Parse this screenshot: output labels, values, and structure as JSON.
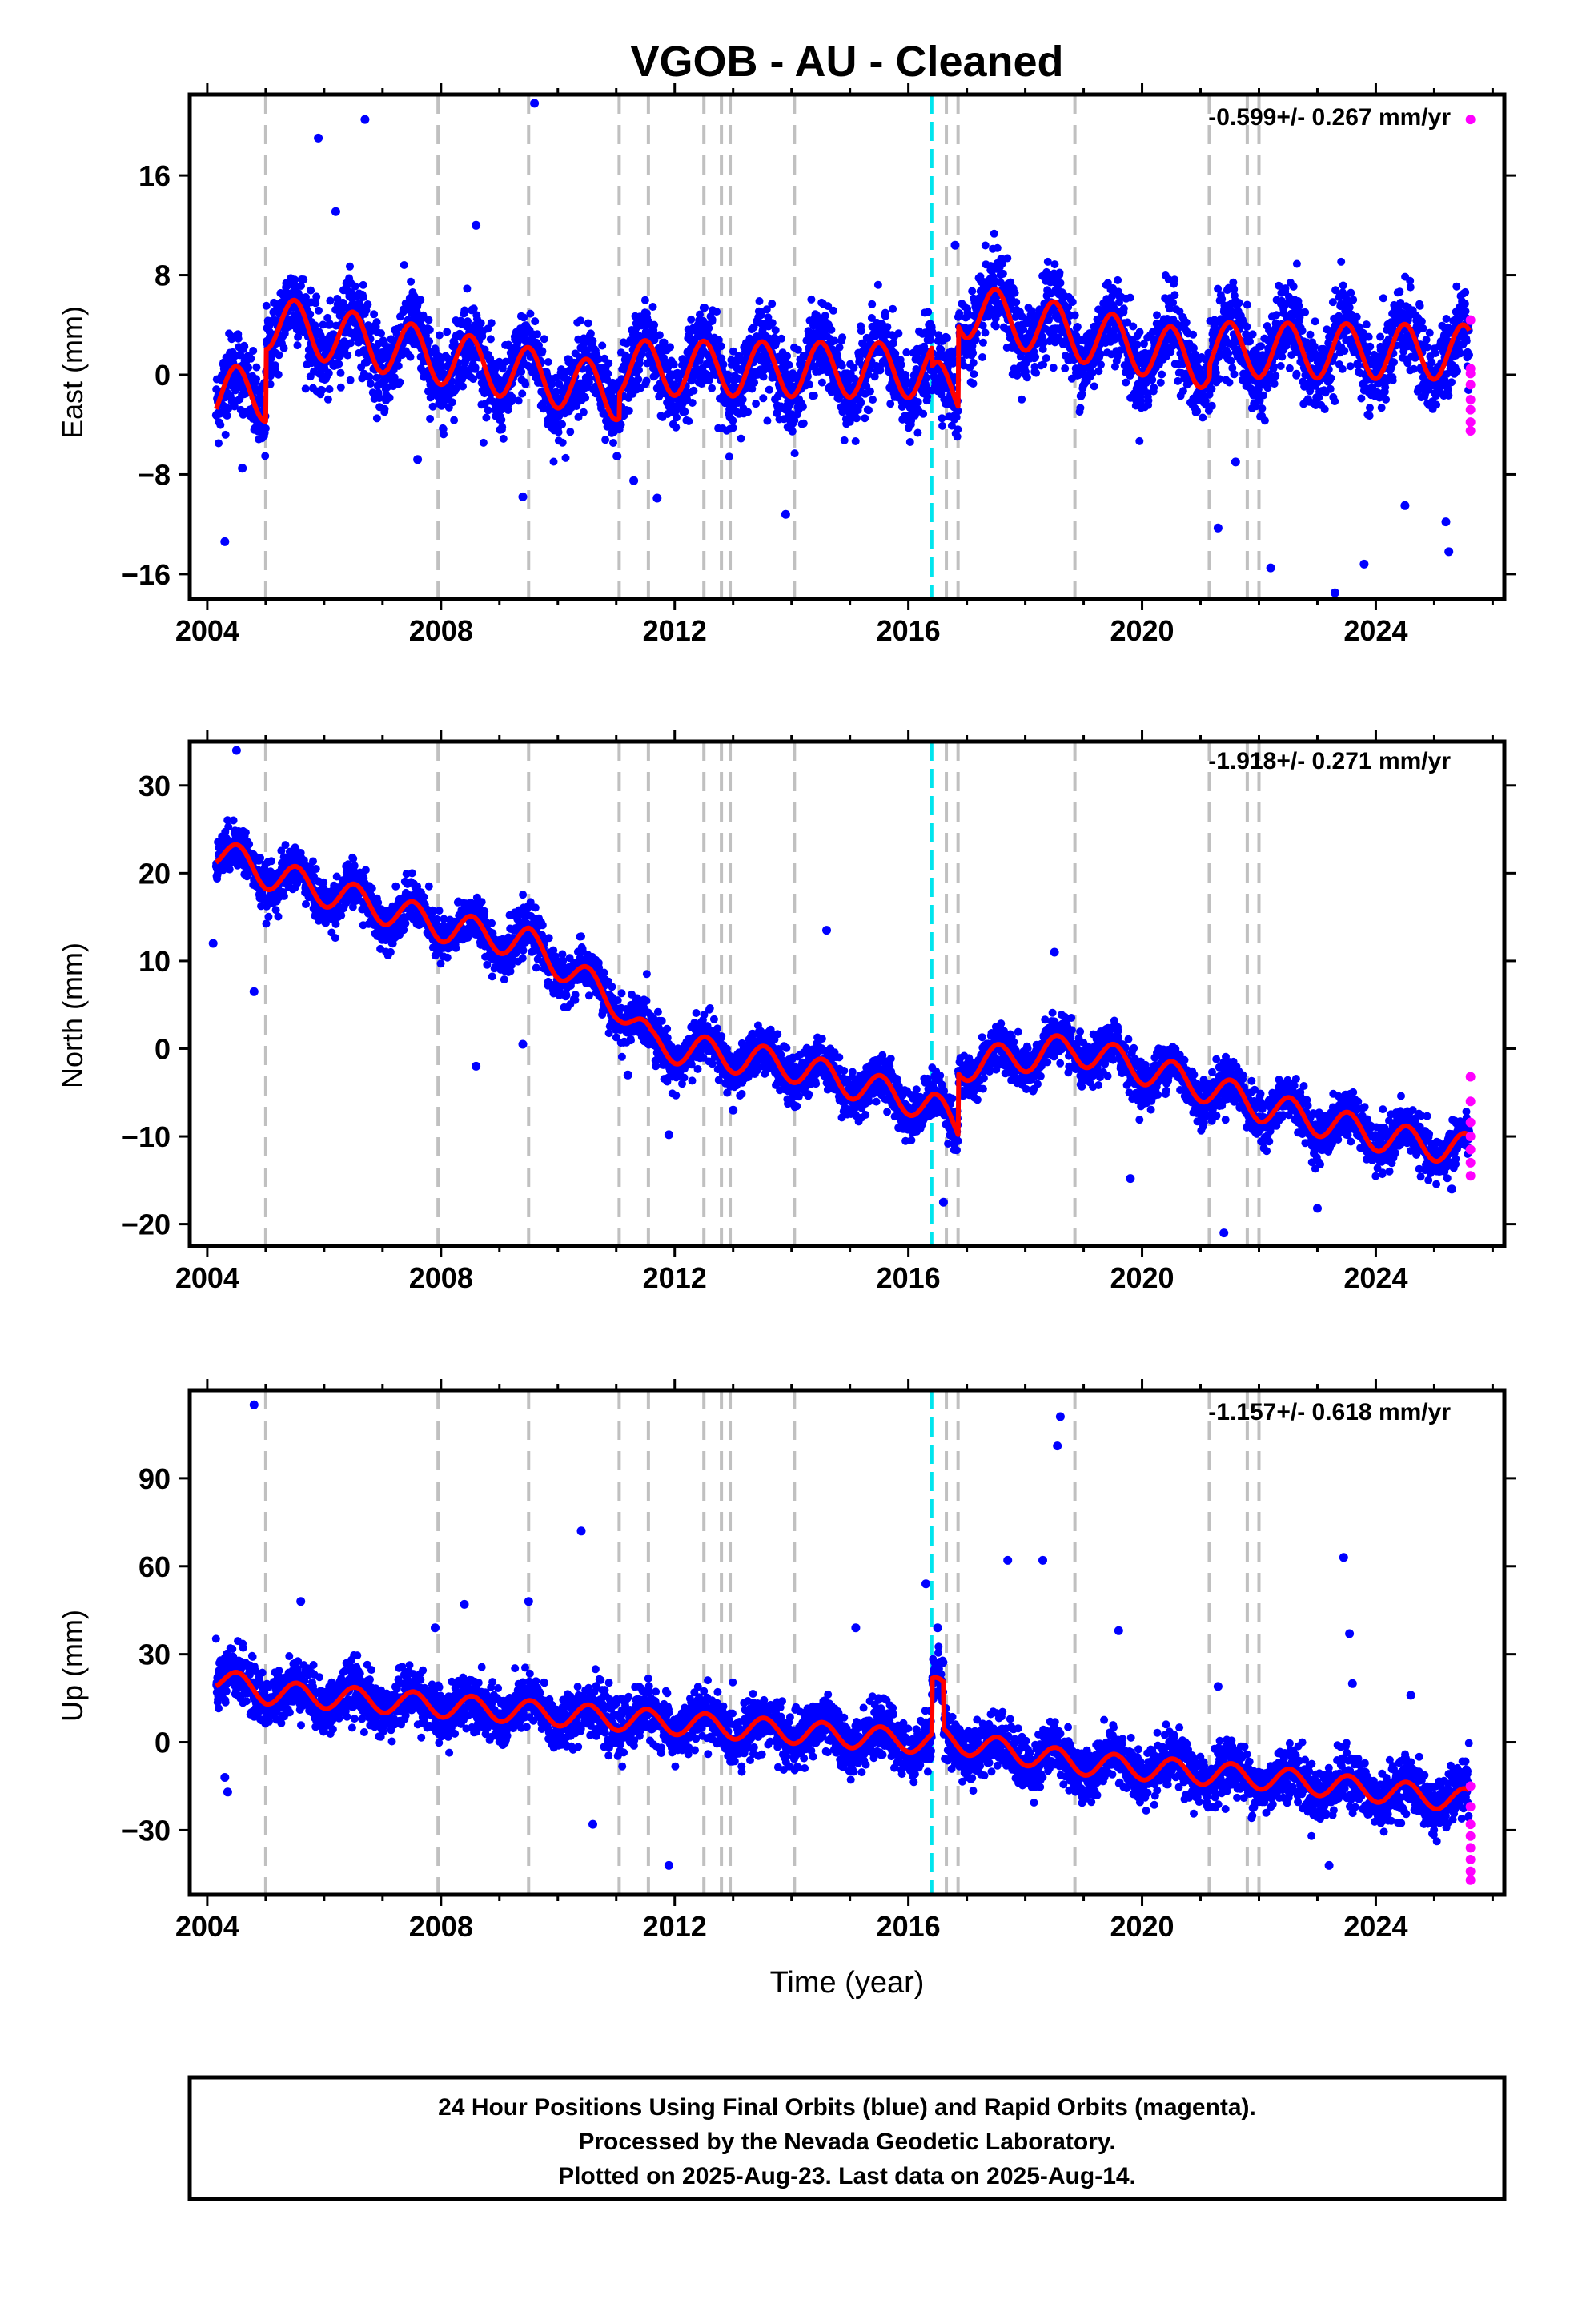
{
  "title": "VGOB  - AU - Cleaned",
  "xlabel": "Time (year)",
  "caption": {
    "line1": "24 Hour Positions Using Final Orbits (blue) and Rapid Orbits (magenta).",
    "line2": "Processed by the Nevada Geodetic Laboratory.",
    "line3": "Plotted on 2025-Aug-23. Last data on 2025-Aug-14."
  },
  "colors": {
    "final_orbits": "#0000ff",
    "rapid_orbits": "#ff00ff",
    "model": "#ff0000",
    "equipment_change": "#c0c0c0",
    "earthquake": "#00e5ee"
  },
  "chart_data": [
    {
      "type": "scatter",
      "component": "east",
      "ylabel": "East (mm)",
      "rate": "-0.599+/- 0.267 mm/yr",
      "xlim": [
        2003.7,
        2026.2
      ],
      "ylim": [
        -18,
        22.5
      ],
      "xticks": [
        2004,
        2008,
        2012,
        2016,
        2020,
        2024
      ],
      "yticks": [
        -16,
        -8,
        0,
        8,
        16
      ],
      "ytick_labels": [
        "−16",
        "−8",
        "0",
        "8",
        "16"
      ],
      "equipment_changes": [
        2005.0,
        2007.95,
        2009.5,
        2011.05,
        2011.55,
        2012.5,
        2012.8,
        2012.95,
        2014.05,
        2016.65,
        2016.85,
        2018.85,
        2021.15,
        2021.8,
        2022.0
      ],
      "earthquakes": [
        2016.4
      ],
      "model": {
        "offsets": [
          [
            2005.0,
            5.8
          ],
          [
            2011.05,
            2.0
          ],
          [
            2016.4,
            -1.5
          ],
          [
            2016.85,
            6.5
          ],
          [
            2021.15,
            -3.0
          ]
        ],
        "seasonal_amplitude": 2.2,
        "base": [
          [
            2004.15,
            -1.5
          ],
          [
            2025.6,
            -2.5
          ]
        ]
      },
      "outliers_final": [
        [
          2004.3,
          -13.4
        ],
        [
          2004.6,
          -7.5
        ],
        [
          2005.9,
          19.0
        ],
        [
          2006.2,
          13.1
        ],
        [
          2006.7,
          20.5
        ],
        [
          2007.6,
          -6.8
        ],
        [
          2008.6,
          12.0
        ],
        [
          2009.4,
          -9.8
        ],
        [
          2009.6,
          21.8
        ],
        [
          2011.7,
          -9.9
        ],
        [
          2011.3,
          -8.5
        ],
        [
          2013.9,
          -11.2
        ],
        [
          2016.8,
          10.4
        ],
        [
          2021.3,
          -12.3
        ],
        [
          2021.6,
          -7.0
        ],
        [
          2022.2,
          -15.5
        ],
        [
          2023.3,
          -17.5
        ],
        [
          2023.8,
          -15.2
        ],
        [
          2025.2,
          -11.8
        ],
        [
          2025.25,
          -14.2
        ],
        [
          2024.5,
          -10.5
        ]
      ],
      "rapid": [
        [
          2025.62,
          20.5
        ],
        [
          2025.62,
          4.4
        ],
        [
          2025.62,
          0.5
        ],
        [
          2025.62,
          -0.8
        ],
        [
          2025.62,
          -2.0
        ],
        [
          2025.62,
          -2.8
        ],
        [
          2025.62,
          -3.8
        ],
        [
          2025.62,
          -4.5
        ],
        [
          2025.62,
          0.1
        ]
      ]
    },
    {
      "type": "scatter",
      "component": "north",
      "ylabel": "North (mm)",
      "rate": "-1.918+/- 0.271 mm/yr",
      "xlim": [
        2003.7,
        2026.2
      ],
      "ylim": [
        -22.5,
        35
      ],
      "xticks": [
        2004,
        2008,
        2012,
        2016,
        2020,
        2024
      ],
      "yticks": [
        -20,
        -10,
        0,
        10,
        20,
        30
      ],
      "ytick_labels": [
        "−20",
        "−10",
        "0",
        "10",
        "20",
        "30"
      ],
      "equipment_changes": [
        2005.0,
        2007.95,
        2009.5,
        2011.05,
        2011.55,
        2012.5,
        2012.8,
        2012.95,
        2014.05,
        2016.65,
        2016.85,
        2018.85,
        2021.15,
        2021.8,
        2022.0
      ],
      "earthquakes": [
        2016.4
      ],
      "model": {
        "knots": [
          [
            2004.15,
            22.5
          ],
          [
            2005.0,
            20.0
          ],
          [
            2008.0,
            14.0
          ],
          [
            2009.5,
            12.0
          ],
          [
            2010.4,
            8.0
          ],
          [
            2011.05,
            5.0
          ],
          [
            2011.6,
            0.5
          ],
          [
            2014.0,
            -2.0
          ],
          [
            2016.4,
            -6.5
          ],
          [
            2016.85,
            -9.0
          ],
          [
            2016.85,
            -2.0
          ],
          [
            2018.85,
            0.0
          ],
          [
            2021.15,
            -4.5
          ],
          [
            2022.0,
            -6.5
          ],
          [
            2024.4,
            -10.5
          ],
          [
            2025.6,
            -11.5
          ]
        ],
        "seasonal_amplitude": 1.8
      },
      "outliers_final": [
        [
          2004.5,
          34.0
        ],
        [
          2004.8,
          6.5
        ],
        [
          2004.1,
          12.0
        ],
        [
          2008.6,
          -2.0
        ],
        [
          2009.4,
          0.5
        ],
        [
          2011.2,
          -3.0
        ],
        [
          2011.9,
          -9.8
        ],
        [
          2013.0,
          -7.0
        ],
        [
          2014.6,
          13.5
        ],
        [
          2016.6,
          -17.5
        ],
        [
          2018.5,
          11.0
        ],
        [
          2019.8,
          -14.8
        ],
        [
          2021.4,
          -21.0
        ],
        [
          2023.0,
          -18.2
        ],
        [
          2025.3,
          -16.0
        ]
      ],
      "rapid": [
        [
          2025.62,
          -3.2
        ],
        [
          2025.62,
          -6.0
        ],
        [
          2025.62,
          -8.4
        ],
        [
          2025.62,
          -10.0
        ],
        [
          2025.62,
          -11.5
        ],
        [
          2025.62,
          -13.0
        ],
        [
          2025.62,
          -14.5
        ]
      ]
    },
    {
      "type": "scatter",
      "component": "up",
      "ylabel": "Up (mm)",
      "rate": "-1.157+/- 0.618 mm/yr",
      "xlim": [
        2003.7,
        2026.2
      ],
      "ylim": [
        -52,
        120
      ],
      "xticks": [
        2004,
        2008,
        2012,
        2016,
        2020,
        2024
      ],
      "yticks": [
        -30,
        0,
        30,
        60,
        90
      ],
      "ytick_labels": [
        "−30",
        "0",
        "30",
        "60",
        "90"
      ],
      "equipment_changes": [
        2005.0,
        2007.95,
        2009.5,
        2011.05,
        2011.55,
        2012.5,
        2012.8,
        2012.95,
        2014.05,
        2016.65,
        2016.85,
        2018.85,
        2021.15,
        2021.8,
        2022.0
      ],
      "earthquakes": [
        2016.4
      ],
      "model": {
        "knots": [
          [
            2004.15,
            22.0
          ],
          [
            2005.0,
            17.0
          ],
          [
            2016.4,
            0.0
          ],
          [
            2016.4,
            19.0
          ],
          [
            2016.6,
            17.0
          ],
          [
            2016.6,
            1.0
          ],
          [
            2018.85,
            -7.0
          ],
          [
            2022.0,
            -12.0
          ],
          [
            2025.6,
            -20.0
          ]
        ],
        "seasonal_amplitude": 4.0
      },
      "outliers_final": [
        [
          2004.8,
          115.0
        ],
        [
          2004.3,
          -12.0
        ],
        [
          2004.35,
          -17.0
        ],
        [
          2005.6,
          48.0
        ],
        [
          2007.9,
          39.0
        ],
        [
          2008.4,
          47.0
        ],
        [
          2009.5,
          48.0
        ],
        [
          2010.4,
          72.0
        ],
        [
          2010.6,
          -28.0
        ],
        [
          2011.9,
          -42.0
        ],
        [
          2015.1,
          39.0
        ],
        [
          2016.3,
          54.0
        ],
        [
          2016.5,
          39.0
        ],
        [
          2017.7,
          62.0
        ],
        [
          2018.55,
          101.0
        ],
        [
          2018.6,
          111.0
        ],
        [
          2018.3,
          62.0
        ],
        [
          2019.6,
          38.0
        ],
        [
          2021.3,
          19.0
        ],
        [
          2023.45,
          63.0
        ],
        [
          2023.55,
          37.0
        ],
        [
          2023.6,
          20.0
        ],
        [
          2023.2,
          -42.0
        ],
        [
          2024.6,
          16.0
        ]
      ],
      "rapid": [
        [
          2025.62,
          -15.0
        ],
        [
          2025.62,
          -22.0
        ],
        [
          2025.62,
          -28.0
        ],
        [
          2025.62,
          -32.0
        ],
        [
          2025.62,
          -36.0
        ],
        [
          2025.62,
          -40.0
        ],
        [
          2025.62,
          -44.0
        ],
        [
          2025.62,
          -47.0
        ]
      ]
    }
  ]
}
